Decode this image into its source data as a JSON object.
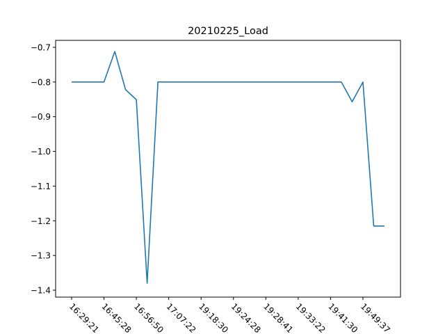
{
  "chart_data": {
    "type": "line",
    "title": "20210225_Load",
    "xlabel": "",
    "ylabel": "",
    "ylim": [
      -1.42,
      -0.68
    ],
    "yticks": [
      -0.7,
      -0.8,
      -0.9,
      -1.0,
      -1.1,
      -1.2,
      -1.3,
      -1.4
    ],
    "ytick_labels": [
      "−0.7",
      "−0.8",
      "−0.9",
      "−1.0",
      "−1.1",
      "−1.2",
      "−1.3",
      "−1.4"
    ],
    "xticks": [
      0,
      3,
      6,
      9,
      12,
      15,
      18,
      21,
      24,
      27
    ],
    "xtick_labels": [
      "16:29:21",
      "16:45:28",
      "16:56:50",
      "17:07:22",
      "19:18:30",
      "19:24:28",
      "19:28:41",
      "19:33:22",
      "19:41:30",
      "19:49:37"
    ],
    "grid": false,
    "color": "#1f77b4",
    "series": [
      {
        "x": [
          0,
          1,
          2,
          3,
          4,
          5,
          6,
          7,
          8,
          9,
          10,
          11,
          12,
          13,
          14,
          15,
          16,
          17,
          18,
          19,
          20,
          21,
          22,
          23,
          24,
          25,
          26,
          27,
          28,
          29
        ],
        "values": [
          -0.8,
          -0.8,
          -0.8,
          -0.8,
          -0.712,
          -0.822,
          -0.851,
          -1.38,
          -0.8,
          -0.8,
          -0.8,
          -0.8,
          -0.8,
          -0.8,
          -0.8,
          -0.8,
          -0.8,
          -0.8,
          -0.8,
          -0.8,
          -0.8,
          -0.8,
          -0.8,
          -0.8,
          -0.8,
          -0.8,
          -0.857,
          -0.8,
          -1.215,
          -1.215
        ]
      }
    ]
  }
}
